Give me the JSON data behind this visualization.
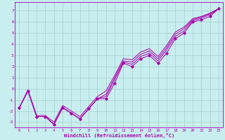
{
  "background_color": "#c8eef0",
  "grid_color": "#a0c8c0",
  "line_color": "#aa00aa",
  "marker_color": "#aa00aa",
  "xlabel": "Windchill (Refroidissement éolien,°C)",
  "xlim": [
    -0.5,
    23.5
  ],
  "ylim": [
    -3.5,
    7.8
  ],
  "yticks": [
    -3,
    -2,
    -1,
    0,
    1,
    2,
    3,
    4,
    5,
    6,
    7
  ],
  "xticks": [
    0,
    1,
    2,
    3,
    4,
    5,
    6,
    7,
    8,
    9,
    10,
    11,
    12,
    13,
    14,
    15,
    16,
    17,
    18,
    19,
    20,
    21,
    22,
    23
  ],
  "x": [
    0,
    1,
    2,
    3,
    4,
    5,
    6,
    7,
    8,
    9,
    10,
    11,
    12,
    13,
    14,
    15,
    16,
    17,
    18,
    19,
    20,
    21,
    22,
    23
  ],
  "y_line1": [
    -1.7,
    -0.2,
    -2.5,
    -2.5,
    -3.2,
    -1.7,
    -2.2,
    -2.7,
    -1.8,
    -0.9,
    -0.9,
    0.5,
    2.3,
    2.0,
    2.7,
    3.0,
    2.3,
    3.2,
    4.5,
    5.0,
    6.0,
    6.2,
    6.5,
    7.2
  ],
  "y_line2": [
    -1.7,
    -0.2,
    -2.5,
    -2.5,
    -3.2,
    -1.7,
    -2.2,
    -2.7,
    -1.8,
    -0.9,
    -0.7,
    0.8,
    2.4,
    2.2,
    2.9,
    3.2,
    2.5,
    3.5,
    4.7,
    5.2,
    6.1,
    6.35,
    6.65,
    7.2
  ],
  "y_line3": [
    -1.7,
    -0.2,
    -2.5,
    -2.5,
    -3.2,
    -1.7,
    -2.2,
    -2.7,
    -1.8,
    -0.9,
    -0.5,
    1.0,
    2.5,
    2.4,
    3.1,
    3.4,
    2.7,
    3.7,
    4.9,
    5.4,
    6.2,
    6.45,
    6.75,
    7.2
  ],
  "y_line4": [
    -1.7,
    -0.1,
    -2.4,
    -2.4,
    -3.0,
    -1.5,
    -2.0,
    -2.5,
    -1.6,
    -0.7,
    -0.2,
    1.2,
    2.7,
    2.6,
    3.3,
    3.6,
    2.9,
    3.9,
    5.1,
    5.55,
    6.3,
    6.5,
    6.8,
    7.2
  ]
}
